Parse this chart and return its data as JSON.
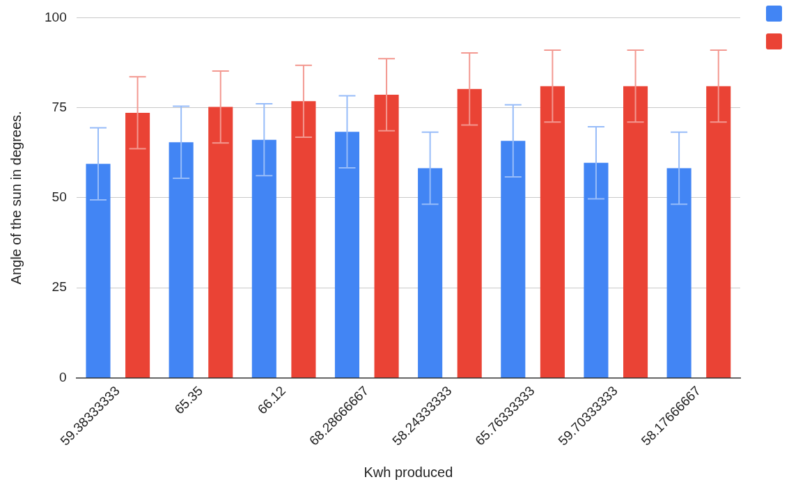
{
  "chart_data": {
    "type": "bar",
    "xlabel": "Kwh produced",
    "ylabel": "Angle of the sun in degrees.",
    "categories": [
      "59.38333333",
      "65.35",
      "66.12",
      "68.28666667",
      "58.24333333",
      "65.76333333",
      "59.70333333",
      "58.17666667"
    ],
    "series": [
      {
        "color": "#4285f4",
        "values": [
          59.4,
          65.4,
          66.1,
          68.3,
          58.2,
          65.8,
          59.7,
          58.2
        ],
        "errors": [
          10,
          10,
          10,
          10,
          10,
          10,
          10,
          10
        ]
      },
      {
        "color": "#ea4335",
        "values": [
          73.6,
          75.2,
          76.8,
          78.6,
          80.2,
          81,
          81,
          81
        ],
        "errors": [
          10,
          10,
          10,
          10,
          10,
          10,
          10,
          10
        ]
      }
    ],
    "ylim": [
      0,
      100
    ],
    "yticks": [
      0,
      25,
      50,
      75,
      100
    ],
    "grid": "y"
  }
}
